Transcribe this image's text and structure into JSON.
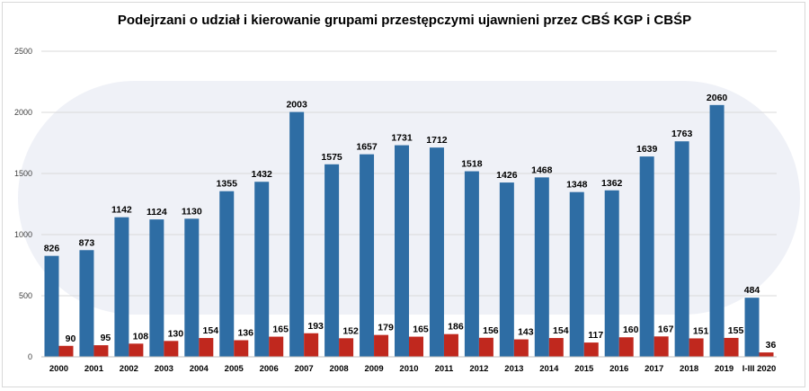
{
  "chart_data": {
    "type": "bar",
    "title": "Podejrzani o udział i kierowanie grupami przestępczymi ujawnieni przez CBŚ KGP i CBŚP",
    "xlabel": "",
    "ylabel": "",
    "ylim": [
      0,
      2500
    ],
    "yticks": [
      0,
      500,
      1000,
      1500,
      2000,
      2500
    ],
    "grid": true,
    "legend": "none",
    "categories": [
      "2000",
      "2001",
      "2002",
      "2003",
      "2004",
      "2005",
      "2006",
      "2007",
      "2008",
      "2009",
      "2010",
      "2011",
      "2012",
      "2013",
      "2014",
      "2015",
      "2016",
      "2017",
      "2018",
      "2019",
      "I-III 2020"
    ],
    "series": [
      {
        "color": "#2e6da4",
        "values": [
          826,
          873,
          1142,
          1124,
          1130,
          1355,
          1432,
          2003,
          1575,
          1657,
          1731,
          1712,
          1518,
          1426,
          1468,
          1348,
          1362,
          1639,
          1763,
          2060,
          484
        ]
      },
      {
        "color": "#c0281e",
        "values": [
          90,
          95,
          108,
          130,
          154,
          136,
          165,
          193,
          152,
          179,
          165,
          186,
          156,
          143,
          154,
          117,
          160,
          167,
          151,
          155,
          36
        ]
      }
    ]
  }
}
